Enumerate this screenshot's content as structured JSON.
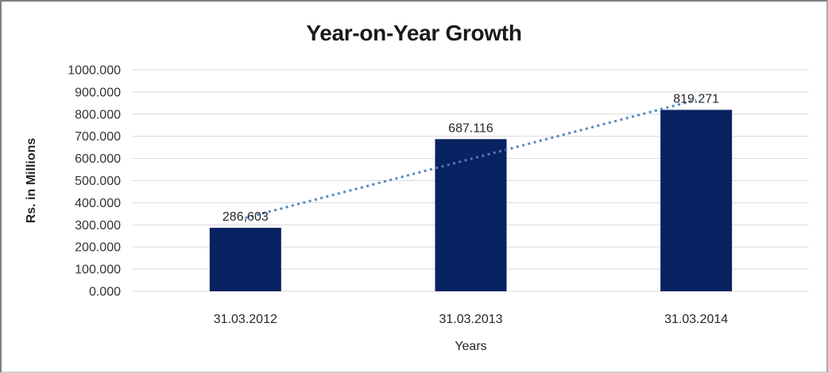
{
  "chart_data": {
    "type": "bar",
    "title": "Year-on-Year Growth",
    "categories": [
      "31.03.2012",
      "31.03.2013",
      "31.03.2014"
    ],
    "values": [
      286.603,
      687.116,
      819.271
    ],
    "data_labels": [
      "286,603",
      "687.116",
      "819.271"
    ],
    "xlabel": "Years",
    "ylabel": "Rs. in Millions",
    "ylim": [
      0,
      1000
    ],
    "ytick_step": 100,
    "ytick_labels": [
      "0.000",
      "100.000",
      "200.000",
      "300.000",
      "400.000",
      "500.000",
      "600.000",
      "700.000",
      "800.000",
      "900.000",
      "1000.000"
    ],
    "grid": true,
    "legend": false,
    "trendline": {
      "type": "linear",
      "style": "dotted"
    },
    "colors": {
      "bar": "#082262",
      "trendline": "#4f81bd",
      "gridline": "#d9d9d9",
      "tick_text": "#333333",
      "label_text": "#262626",
      "title_text": "#1a1a1a",
      "background": "#ffffff"
    }
  }
}
